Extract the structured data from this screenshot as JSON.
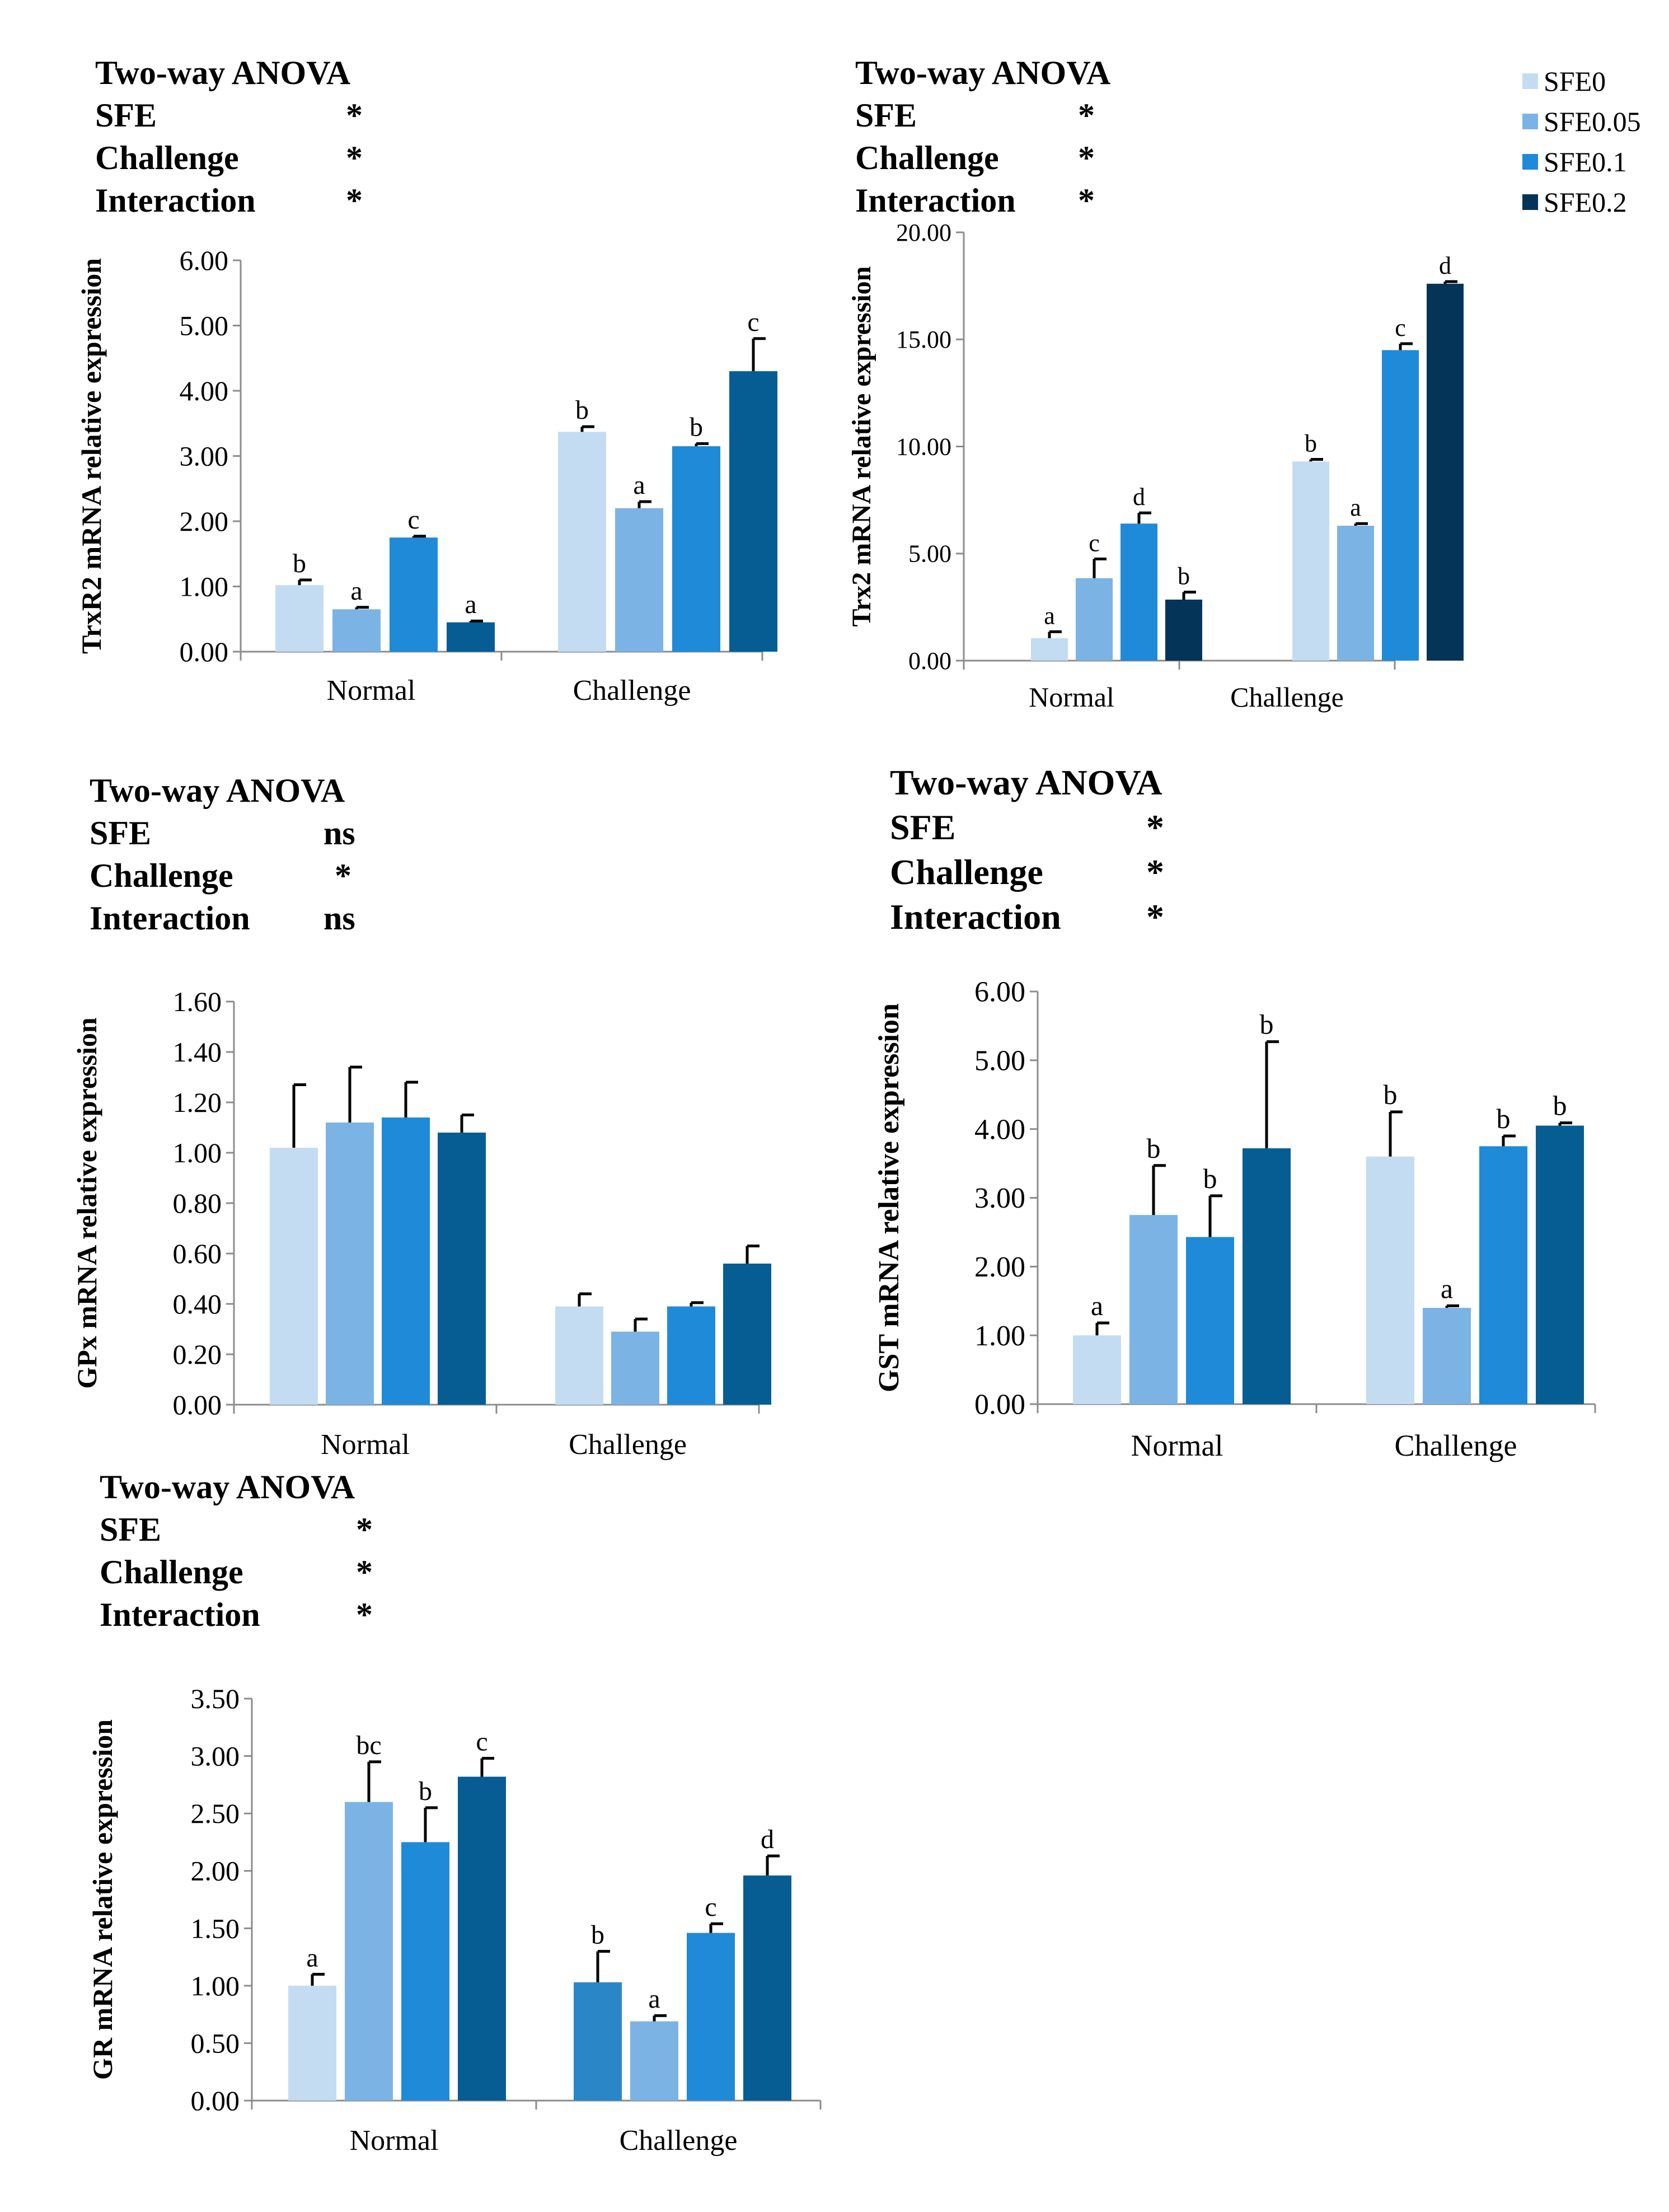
{
  "legend": {
    "labels": [
      "SFE0",
      "SFE0.05",
      "SFE0.1",
      "SFE0.2"
    ],
    "colors": [
      "#c4dcf2",
      "#7cb3e5",
      "#1f8ad8",
      "#053459"
    ]
  },
  "colors": {
    "sfe0": "#c4dcf2",
    "sfe005": "#7cb3e5",
    "sfe01": "#1f8ad8",
    "sfe02_dark": "#053459",
    "sfe02_mid": "#055d94",
    "challenge_sfe0_alt": "#2b86c8"
  },
  "anova_panels": [
    {
      "title": "Two-way ANOVA",
      "rows": [
        {
          "label": "SFE",
          "sig": "*"
        },
        {
          "label": "Challenge",
          "sig": "*"
        },
        {
          "label": "Interaction",
          "sig": "*"
        }
      ]
    },
    {
      "title": "Two-way ANOVA",
      "rows": [
        {
          "label": "SFE",
          "sig": "*"
        },
        {
          "label": "Challenge",
          "sig": "*"
        },
        {
          "label": "Interaction",
          "sig": "*"
        }
      ]
    },
    {
      "title": "Two-way ANOVA",
      "rows": [
        {
          "label": "SFE",
          "sig": "ns"
        },
        {
          "label": "Challenge",
          "sig": "*"
        },
        {
          "label": "Interaction",
          "sig": "ns"
        }
      ]
    },
    {
      "title": "Two-way ANOVA",
      "rows": [
        {
          "label": "SFE",
          "sig": "*"
        },
        {
          "label": "Challenge",
          "sig": "*"
        },
        {
          "label": "Interaction",
          "sig": "*"
        }
      ]
    },
    {
      "title": "Two-way ANOVA",
      "rows": [
        {
          "label": "SFE",
          "sig": "*"
        },
        {
          "label": "Challenge",
          "sig": "*"
        },
        {
          "label": "Interaction",
          "sig": "*"
        }
      ]
    }
  ],
  "chart_data": [
    {
      "type": "bar",
      "title": "",
      "ylabel": "TrxR2 mRNA relative expression",
      "categories": [
        "Normal",
        "Challenge"
      ],
      "ylim": [
        0,
        6
      ],
      "yticks": [
        "0.00",
        "1.00",
        "2.00",
        "3.00",
        "4.00",
        "5.00",
        "6.00"
      ],
      "series": [
        {
          "name": "SFE0",
          "values": [
            1.02,
            3.37
          ],
          "errors": [
            0.08,
            0.08
          ],
          "letters": [
            "b",
            "b"
          ]
        },
        {
          "name": "SFE0.05",
          "values": [
            0.65,
            2.2
          ],
          "errors": [
            0.03,
            0.1
          ],
          "letters": [
            "a",
            "a"
          ]
        },
        {
          "name": "SFE0.1",
          "values": [
            1.75,
            3.15
          ],
          "errors": [
            0.02,
            0.04
          ],
          "letters": [
            "c",
            "b"
          ]
        },
        {
          "name": "SFE0.2",
          "values": [
            0.45,
            4.3
          ],
          "errors": [
            0.02,
            0.5
          ],
          "letters": [
            "a",
            "c"
          ]
        }
      ]
    },
    {
      "type": "bar",
      "title": "",
      "ylabel": "Trx2 mRNA relative expression",
      "categories": [
        "Normal",
        "Challenge"
      ],
      "ylim": [
        0,
        20
      ],
      "yticks": [
        "0.00",
        "5.00",
        "10.00",
        "15.00",
        "20.00"
      ],
      "series": [
        {
          "name": "SFE0",
          "values": [
            1.05,
            9.3
          ],
          "errors": [
            0.3,
            0.1
          ],
          "letters": [
            "a",
            "b"
          ]
        },
        {
          "name": "SFE0.05",
          "values": [
            3.85,
            6.3
          ],
          "errors": [
            0.9,
            0.1
          ],
          "letters": [
            "c",
            "a"
          ]
        },
        {
          "name": "SFE0.1",
          "values": [
            6.4,
            14.5
          ],
          "errors": [
            0.5,
            0.3
          ],
          "letters": [
            "d",
            "c"
          ]
        },
        {
          "name": "SFE0.2",
          "values": [
            2.85,
            17.6
          ],
          "errors": [
            0.35,
            0.1
          ],
          "letters": [
            "b",
            "d"
          ]
        }
      ]
    },
    {
      "type": "bar",
      "title": "",
      "ylabel": "GPx mRNA relative expression",
      "categories": [
        "Normal",
        "Challenge"
      ],
      "ylim": [
        0,
        1.6
      ],
      "yticks": [
        "0.00",
        "0.20",
        "0.40",
        "0.60",
        "0.80",
        "1.00",
        "1.20",
        "1.40",
        "1.60"
      ],
      "series": [
        {
          "name": "SFE0",
          "values": [
            1.02,
            0.39
          ],
          "errors": [
            0.25,
            0.05
          ],
          "letters": [
            "",
            ""
          ]
        },
        {
          "name": "SFE0.05",
          "values": [
            1.12,
            0.29
          ],
          "errors": [
            0.22,
            0.05
          ],
          "letters": [
            "",
            ""
          ]
        },
        {
          "name": "SFE0.1",
          "values": [
            1.14,
            0.39
          ],
          "errors": [
            0.14,
            0.015
          ],
          "letters": [
            "",
            ""
          ]
        },
        {
          "name": "SFE0.2",
          "values": [
            1.08,
            0.56
          ],
          "errors": [
            0.07,
            0.07
          ],
          "letters": [
            "",
            ""
          ]
        }
      ]
    },
    {
      "type": "bar",
      "title": "",
      "ylabel": "GST mRNA relative expression",
      "categories": [
        "Normal",
        "Challenge"
      ],
      "ylim": [
        0,
        6
      ],
      "yticks": [
        "0.00",
        "1.00",
        "2.00",
        "3.00",
        "4.00",
        "5.00",
        "6.00"
      ],
      "series": [
        {
          "name": "SFE0",
          "values": [
            1.0,
            3.6
          ],
          "errors": [
            0.18,
            0.65
          ],
          "letters": [
            "a",
            "b"
          ]
        },
        {
          "name": "SFE0.05",
          "values": [
            2.75,
            1.4
          ],
          "errors": [
            0.72,
            0.03
          ],
          "letters": [
            "b",
            "a"
          ]
        },
        {
          "name": "SFE0.1",
          "values": [
            2.43,
            3.75
          ],
          "errors": [
            0.6,
            0.15
          ],
          "letters": [
            "b",
            "b"
          ]
        },
        {
          "name": "SFE0.2",
          "values": [
            3.72,
            4.05
          ],
          "errors": [
            1.55,
            0.04
          ],
          "letters": [
            "b",
            "b"
          ]
        }
      ]
    },
    {
      "type": "bar",
      "title": "",
      "ylabel": "GR mRNA relative expression",
      "categories": [
        "Normal",
        "Challenge"
      ],
      "ylim": [
        0,
        3.5
      ],
      "yticks": [
        "0.00",
        "0.50",
        "1.00",
        "1.50",
        "2.00",
        "2.50",
        "3.00",
        "3.50"
      ],
      "series": [
        {
          "name": "SFE0",
          "values": [
            1.0,
            1.03
          ],
          "errors": [
            0.1,
            0.27
          ],
          "letters": [
            "a",
            "b"
          ]
        },
        {
          "name": "SFE0.05",
          "values": [
            2.6,
            0.69
          ],
          "errors": [
            0.35,
            0.05
          ],
          "letters": [
            "bc",
            "a"
          ]
        },
        {
          "name": "SFE0.1",
          "values": [
            2.25,
            1.46
          ],
          "errors": [
            0.3,
            0.08
          ],
          "letters": [
            "b",
            "c"
          ]
        },
        {
          "name": "SFE0.2",
          "values": [
            2.82,
            1.96
          ],
          "errors": [
            0.16,
            0.17
          ],
          "letters": [
            "c",
            "d"
          ]
        }
      ]
    }
  ]
}
